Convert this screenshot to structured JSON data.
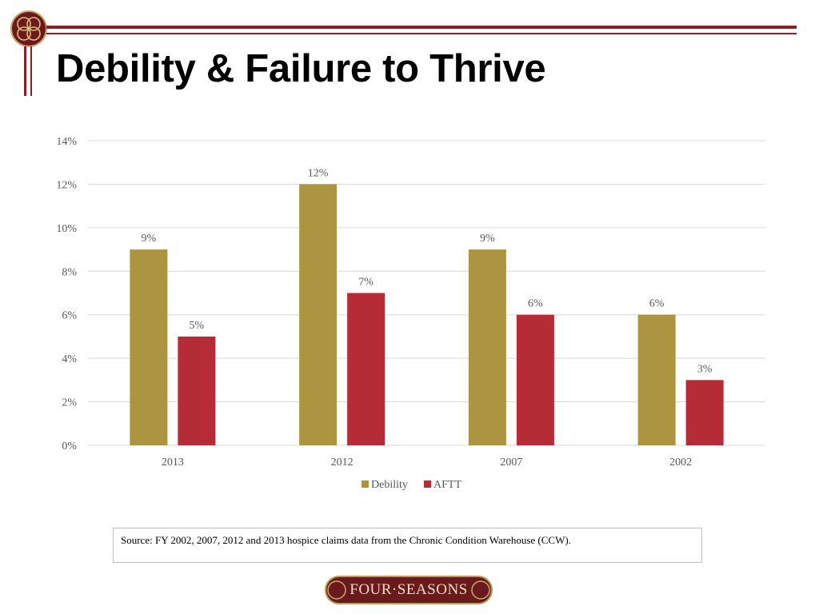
{
  "page": {
    "title": "Debility & Failure to Thrive",
    "accent_color": "#8b1f24",
    "source": "Source: FY 2002, 2007, 2012 and 2013 hospice claims data from the Chronic Condition Warehouse (CCW).",
    "footer_logo_text": "FOUR·SEASONS",
    "icons": {
      "top_logo": "four-seasons-knot-icon",
      "bottom_logo": "four-seasons-logo"
    }
  },
  "chart_data": {
    "type": "bar",
    "categories": [
      "2013",
      "2012",
      "2007",
      "2002"
    ],
    "series": [
      {
        "name": "Debility",
        "values": [
          9,
          12,
          9,
          6
        ],
        "labels": [
          "9%",
          "12%",
          "9%",
          "6%"
        ],
        "color": "#ad9440"
      },
      {
        "name": "AFTT",
        "values": [
          5,
          7,
          6,
          3
        ],
        "labels": [
          "5%",
          "7%",
          "6%",
          "3%"
        ],
        "color": "#b52b36"
      }
    ],
    "ylim": [
      0,
      14
    ],
    "yticks": [
      {
        "value": 0,
        "label": "0%"
      },
      {
        "value": 2,
        "label": "2%"
      },
      {
        "value": 4,
        "label": "4%"
      },
      {
        "value": 6,
        "label": "6%"
      },
      {
        "value": 8,
        "label": "8%"
      },
      {
        "value": 10,
        "label": "10%"
      },
      {
        "value": 12,
        "label": "12%"
      },
      {
        "value": 14,
        "label": "14%"
      }
    ],
    "grid": true,
    "legend_position": "bottom",
    "gridline_color": "#d9d9d9"
  }
}
